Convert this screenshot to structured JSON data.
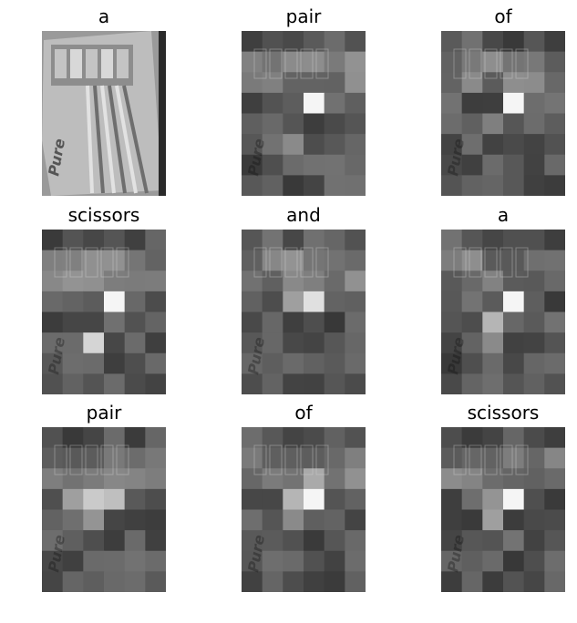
{
  "panels": [
    {
      "word": "a",
      "kind": "photo",
      "hot": []
    },
    {
      "word": "pair",
      "kind": "heat",
      "hot": [
        [
          3,
          3,
          1.0
        ],
        [
          2,
          5,
          0.5
        ],
        [
          1,
          4,
          0.35
        ]
      ]
    },
    {
      "word": "of",
      "kind": "heat",
      "hot": [
        [
          3,
          3,
          1.0
        ],
        [
          2,
          4,
          0.45
        ],
        [
          3,
          1,
          0.4
        ]
      ]
    },
    {
      "word": "scissors",
      "kind": "heat",
      "hot": [
        [
          3,
          3,
          1.0
        ],
        [
          2,
          5,
          0.85
        ],
        [
          3,
          2,
          0.35
        ]
      ]
    },
    {
      "word": "and",
      "kind": "heat",
      "hot": [
        [
          3,
          3,
          0.9
        ],
        [
          2,
          3,
          0.6
        ],
        [
          3,
          2,
          0.45
        ]
      ]
    },
    {
      "word": "a",
      "kind": "heat",
      "hot": [
        [
          3,
          3,
          1.0
        ],
        [
          2,
          4,
          0.7
        ],
        [
          2,
          5,
          0.5
        ]
      ]
    },
    {
      "word": "pair",
      "kind": "heat",
      "hot": [
        [
          2,
          3,
          0.8
        ],
        [
          3,
          3,
          0.75
        ],
        [
          1,
          3,
          0.6
        ],
        [
          2,
          4,
          0.55
        ]
      ]
    },
    {
      "word": "of",
      "kind": "heat",
      "hot": [
        [
          3,
          3,
          1.0
        ],
        [
          2,
          3,
          0.7
        ],
        [
          3,
          2,
          0.65
        ],
        [
          2,
          4,
          0.5
        ]
      ]
    },
    {
      "word": "scissors",
      "kind": "heat",
      "hot": [
        [
          3,
          3,
          1.0
        ],
        [
          2,
          4,
          0.6
        ],
        [
          2,
          3,
          0.55
        ]
      ]
    }
  ],
  "photo_text": "Pure"
}
